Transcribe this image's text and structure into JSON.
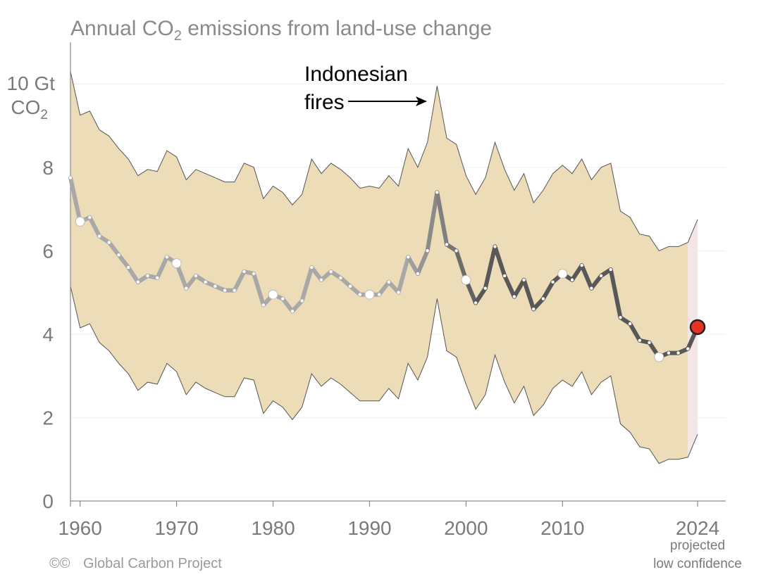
{
  "chart_data": {
    "type": "line",
    "title_main": "Annual CO",
    "title_sub": "2",
    "title_rest": " emissions from land-use change",
    "ylabel_line1": "10 Gt",
    "ylabel_line2": "CO",
    "ylabel_sub": "2",
    "ylim": [
      0,
      11
    ],
    "xlim": [
      1959,
      2024
    ],
    "yticks": [
      {
        "value": 10,
        "label": ""
      },
      {
        "value": 8,
        "label": "8"
      },
      {
        "value": 6,
        "label": "6"
      },
      {
        "value": 4,
        "label": "4"
      },
      {
        "value": 2,
        "label": "2"
      },
      {
        "value": 0,
        "label": "0"
      }
    ],
    "xticks": [
      {
        "value": 1960,
        "label": "1960"
      },
      {
        "value": 1970,
        "label": "1970"
      },
      {
        "value": 1980,
        "label": "1980"
      },
      {
        "value": 1990,
        "label": "1990"
      },
      {
        "value": 2000,
        "label": "2000"
      },
      {
        "value": 2010,
        "label": "2010"
      },
      {
        "value": 2024,
        "label": "2024"
      }
    ],
    "grid": true,
    "x": [
      1959,
      1960,
      1961,
      1962,
      1963,
      1964,
      1965,
      1966,
      1967,
      1968,
      1969,
      1970,
      1971,
      1972,
      1973,
      1974,
      1975,
      1976,
      1977,
      1978,
      1979,
      1980,
      1981,
      1982,
      1983,
      1984,
      1985,
      1986,
      1987,
      1988,
      1989,
      1990,
      1991,
      1992,
      1993,
      1994,
      1995,
      1996,
      1997,
      1998,
      1999,
      2000,
      2001,
      2002,
      2003,
      2004,
      2005,
      2006,
      2007,
      2008,
      2009,
      2010,
      2011,
      2012,
      2013,
      2014,
      2015,
      2016,
      2017,
      2018,
      2019,
      2020,
      2021,
      2022,
      2023,
      2024
    ],
    "series": [
      {
        "name": "Emissions",
        "values": [
          7.75,
          6.7,
          6.8,
          6.35,
          6.2,
          5.9,
          5.6,
          5.25,
          5.4,
          5.35,
          5.85,
          5.7,
          5.1,
          5.4,
          5.25,
          5.15,
          5.05,
          5.05,
          5.5,
          5.45,
          4.7,
          4.95,
          4.85,
          4.55,
          4.8,
          5.6,
          5.3,
          5.5,
          5.35,
          5.15,
          4.95,
          4.95,
          4.95,
          5.25,
          5.0,
          5.85,
          5.45,
          6.0,
          7.4,
          6.15,
          6.0,
          5.3,
          4.75,
          5.1,
          6.1,
          5.4,
          4.9,
          5.3,
          4.6,
          4.85,
          5.25,
          5.45,
          5.3,
          5.65,
          5.1,
          5.4,
          5.55,
          4.4,
          4.25,
          3.85,
          3.8,
          3.45,
          3.55,
          3.55,
          3.65,
          4.17
        ]
      },
      {
        "name": "Upper bound",
        "values": [
          10.3,
          9.25,
          9.35,
          8.9,
          8.75,
          8.45,
          8.2,
          7.8,
          7.95,
          7.9,
          8.4,
          8.25,
          7.7,
          7.95,
          7.85,
          7.75,
          7.65,
          7.65,
          8.1,
          8.0,
          7.25,
          7.55,
          7.4,
          7.1,
          7.35,
          8.2,
          7.85,
          8.1,
          7.95,
          7.75,
          7.5,
          7.55,
          7.5,
          7.8,
          7.55,
          8.45,
          8.0,
          8.6,
          9.95,
          8.7,
          8.55,
          7.8,
          7.35,
          7.75,
          8.6,
          7.95,
          7.45,
          7.85,
          7.15,
          7.45,
          7.85,
          8.05,
          7.85,
          8.2,
          7.7,
          8.0,
          8.1,
          6.95,
          6.8,
          6.4,
          6.35,
          6.0,
          6.1,
          6.1,
          6.2,
          6.75
        ]
      },
      {
        "name": "Lower bound",
        "values": [
          5.15,
          4.15,
          4.25,
          3.8,
          3.6,
          3.3,
          3.05,
          2.65,
          2.85,
          2.8,
          3.3,
          3.1,
          2.55,
          2.85,
          2.7,
          2.6,
          2.5,
          2.5,
          2.95,
          2.9,
          2.1,
          2.4,
          2.25,
          1.95,
          2.25,
          3.05,
          2.75,
          2.95,
          2.8,
          2.6,
          2.4,
          2.4,
          2.4,
          2.7,
          2.45,
          3.3,
          2.9,
          3.45,
          4.85,
          3.6,
          3.45,
          2.8,
          2.2,
          2.55,
          3.5,
          2.85,
          2.35,
          2.75,
          2.05,
          2.3,
          2.7,
          2.9,
          2.75,
          3.1,
          2.55,
          2.85,
          3.0,
          1.85,
          1.65,
          1.3,
          1.25,
          0.9,
          1.0,
          1.0,
          1.05,
          1.6
        ]
      }
    ],
    "highlighted_points": [
      1960,
      1970,
      1980,
      1990,
      2000,
      2010,
      2020
    ],
    "projected_point": {
      "x": 2024,
      "y": 4.17
    },
    "annotation_line1": "Indonesian",
    "annotation_line2": "fires",
    "projected_line1": "projected",
    "projected_line2": "low confidence",
    "footer": "Global Carbon Project",
    "footer_icons": "©©",
    "colors": {
      "band": "#ecdcb7",
      "band_projected": "#f4e6e6",
      "line_early": "#a8a8a8",
      "line_late": "#5a5a5a",
      "projected_marker": "#e63322"
    }
  }
}
